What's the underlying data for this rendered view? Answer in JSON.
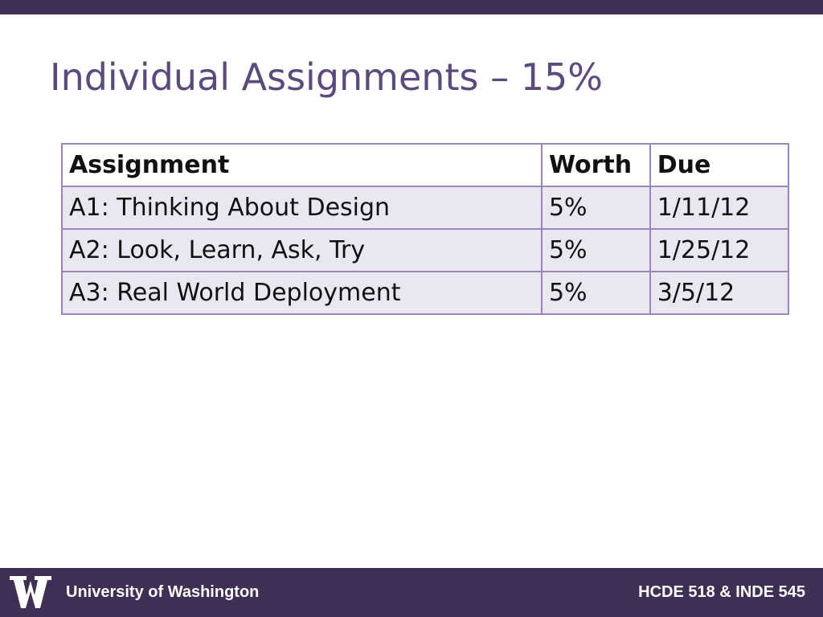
{
  "slide": {
    "title": "Individual Assignments – 15%"
  },
  "table": {
    "headers": [
      "Assignment",
      "Worth",
      "Due"
    ],
    "rows": [
      [
        "A1: Thinking About Design",
        "5%",
        "1/11/12"
      ],
      [
        "A2: Look, Learn, Ask, Try",
        "5%",
        "1/25/12"
      ],
      [
        "A3: Real World Deployment",
        "5%",
        "3/5/12"
      ]
    ]
  },
  "footer": {
    "logo_icon": "uw-w-logo-icon",
    "left_text": "University of Washington",
    "right_text": "HCDE 518 & INDE 545"
  },
  "colors": {
    "bar": "#3f2f55",
    "title": "#5c4a7e",
    "table_border": "#9a86bd",
    "row_fill": "#ebe7f1"
  }
}
